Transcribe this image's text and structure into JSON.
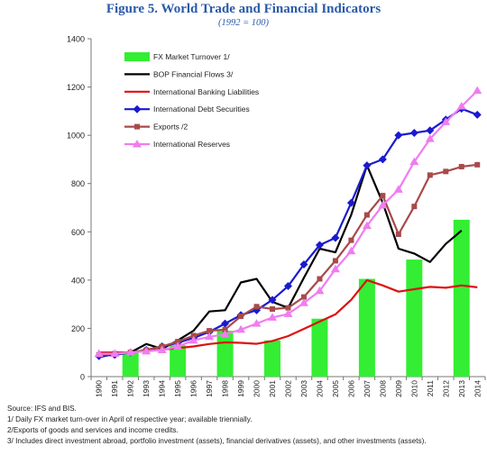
{
  "colors": {
    "title": "#2a5aa8",
    "fx_bar": "#33ee33",
    "bop": "#000000",
    "banking": "#dd1111",
    "debt": "#1a1ad0",
    "exports": "#a84a4a",
    "reserves": "#f07cf0"
  },
  "chart_data": {
    "type": "line",
    "title": "Figure 5. World Trade and Financial Indicators",
    "subtitle": "(1992 = 100)",
    "ylim": [
      0,
      1400
    ],
    "yticks": [
      0,
      200,
      400,
      600,
      800,
      1000,
      1200,
      1400
    ],
    "grid": false,
    "legend": "top-left",
    "categories": [
      "1990",
      "1991",
      "1992",
      "1993",
      "1994",
      "1995",
      "1996",
      "1997",
      "1998",
      "1999",
      "2000",
      "2001",
      "2002",
      "2003",
      "2004",
      "2005",
      "2006",
      "2007",
      "2008",
      "2009",
      "2010",
      "2011",
      "2012",
      "2013",
      "2014"
    ],
    "series": [
      {
        "name": "FX Market Turnover 1/",
        "kind": "bar",
        "color_key": "fx_bar",
        "values": [
          null,
          null,
          100,
          null,
          null,
          130,
          null,
          null,
          190,
          null,
          null,
          150,
          null,
          null,
          240,
          null,
          null,
          405,
          null,
          null,
          485,
          null,
          null,
          650,
          null
        ]
      },
      {
        "name": "BOP Financial Flows 3/",
        "kind": "line",
        "marker": "none",
        "color_key": "bop",
        "values": [
          80,
          95,
          100,
          135,
          115,
          150,
          190,
          270,
          275,
          390,
          405,
          310,
          285,
          410,
          530,
          515,
          670,
          875,
          720,
          530,
          510,
          475,
          550,
          605,
          null
        ]
      },
      {
        "name": "International Banking Liabilities",
        "kind": "line",
        "marker": "none",
        "color_key": "banking",
        "values": [
          100,
          100,
          100,
          108,
          112,
          118,
          125,
          135,
          142,
          140,
          136,
          148,
          168,
          198,
          228,
          258,
          318,
          400,
          378,
          352,
          362,
          372,
          368,
          378,
          370
        ]
      },
      {
        "name": "International Debt Securities",
        "kind": "line",
        "marker": "diamond",
        "color_key": "debt",
        "values": [
          85,
          90,
          100,
          110,
          125,
          140,
          160,
          185,
          220,
          255,
          275,
          318,
          375,
          465,
          545,
          575,
          720,
          875,
          900,
          1000,
          1010,
          1020,
          1065,
          1110,
          1085
        ]
      },
      {
        "name": "Exports /2",
        "kind": "line",
        "marker": "square",
        "color_key": "exports",
        "values": [
          90,
          95,
          100,
          110,
          125,
          145,
          170,
          190,
          195,
          250,
          290,
          280,
          285,
          330,
          405,
          480,
          565,
          670,
          750,
          590,
          705,
          835,
          850,
          870,
          878
        ]
      },
      {
        "name": "International Reserves",
        "kind": "line",
        "marker": "triangle",
        "color_key": "reserves",
        "values": [
          95,
          95,
          100,
          105,
          110,
          125,
          150,
          165,
          175,
          195,
          220,
          245,
          260,
          305,
          355,
          445,
          520,
          625,
          710,
          775,
          890,
          985,
          1055,
          1120,
          1185
        ]
      }
    ]
  },
  "notes": [
    "Source: IFS and BIS.",
    "1/ Daily FX market turn-over in April of respective year; available triennially.",
    "2/Exports of goods and services and income credits.",
    "3/ Includes direct investment abroad, portfolio investment (assets), financial derivatives (assets), and other investments (assets)."
  ]
}
